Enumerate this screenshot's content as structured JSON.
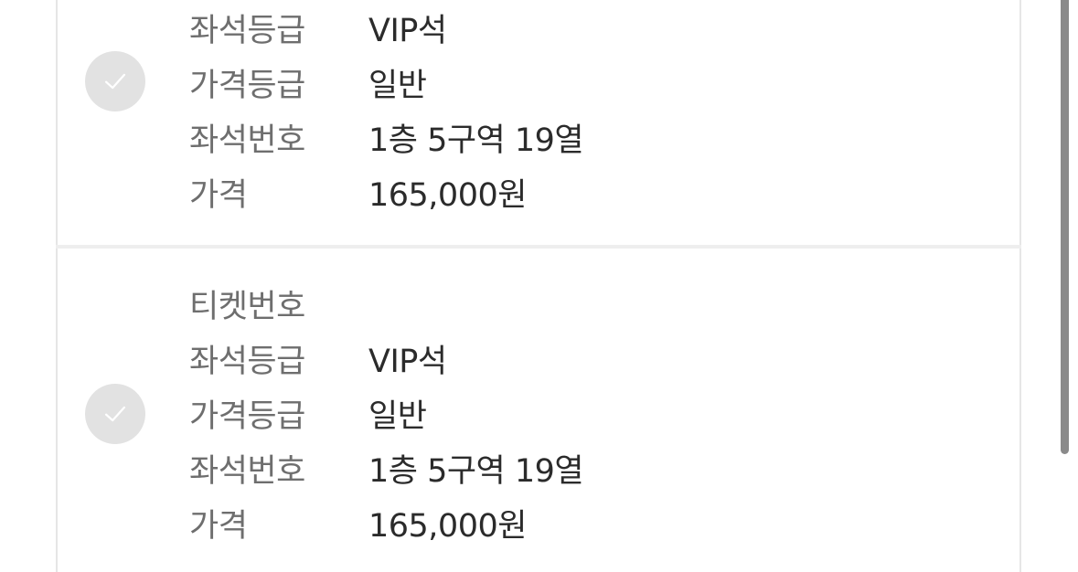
{
  "tickets": [
    {
      "rows": [
        {
          "label": "좌석등급",
          "value": "VIP석"
        },
        {
          "label": "가격등급",
          "value": "일반"
        },
        {
          "label": "좌석번호",
          "value": "1층 5구역 19열"
        },
        {
          "label": "가격",
          "value": "165,000원"
        }
      ]
    },
    {
      "rows": [
        {
          "label": "티켓번호",
          "value": ""
        },
        {
          "label": "좌석등급",
          "value": "VIP석"
        },
        {
          "label": "가격등급",
          "value": "일반"
        },
        {
          "label": "좌석번호",
          "value": "1층 5구역 19열"
        },
        {
          "label": "가격",
          "value": "165,000원"
        }
      ]
    }
  ],
  "colors": {
    "label": "#6e6e6e",
    "value": "#2b2b2b",
    "check_background": "#e2e2e2",
    "check_mark": "#ffffff",
    "border": "#e6e6e6",
    "scrollbar": "#8a8a8a"
  },
  "icons": {
    "check": "check-icon"
  }
}
